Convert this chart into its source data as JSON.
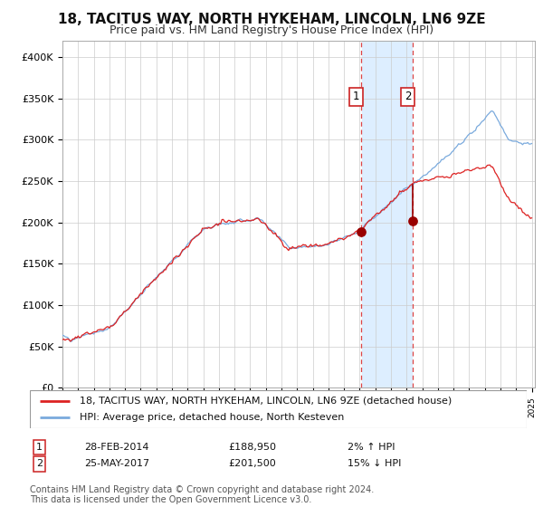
{
  "title": "18, TACITUS WAY, NORTH HYKEHAM, LINCOLN, LN6 9ZE",
  "subtitle": "Price paid vs. HM Land Registry's House Price Index (HPI)",
  "legend_line1": "18, TACITUS WAY, NORTH HYKEHAM, LINCOLN, LN6 9ZE (detached house)",
  "legend_line2": "HPI: Average price, detached house, North Kesteven",
  "annotation1_date": "28-FEB-2014",
  "annotation1_price": "£188,950",
  "annotation1_hpi": "2% ↑ HPI",
  "annotation2_date": "25-MAY-2017",
  "annotation2_price": "£201,500",
  "annotation2_hpi": "15% ↓ HPI",
  "sale1_t": 2014.08,
  "sale1_value": 188950,
  "sale2_t": 2017.37,
  "sale2_value": 201500,
  "hpi_line_color": "#7aaadd",
  "price_line_color": "#dd2222",
  "dot_color": "#990000",
  "shaded_color": "#ddeeff",
  "dashed_line_color": "#dd4444",
  "grid_color": "#cccccc",
  "footer_text": "Contains HM Land Registry data © Crown copyright and database right 2024.\nThis data is licensed under the Open Government Licence v3.0.",
  "ylim": [
    0,
    420000
  ],
  "yticks": [
    0,
    50000,
    100000,
    150000,
    200000,
    250000,
    300000,
    350000,
    400000
  ],
  "ytick_labels": [
    "£0",
    "£50K",
    "£100K",
    "£150K",
    "£200K",
    "£250K",
    "£300K",
    "£350K",
    "£400K"
  ],
  "title_fontsize": 11,
  "subtitle_fontsize": 9,
  "tick_fontsize": 8,
  "legend_fontsize": 8,
  "annot_fontsize": 8,
  "footer_fontsize": 7
}
